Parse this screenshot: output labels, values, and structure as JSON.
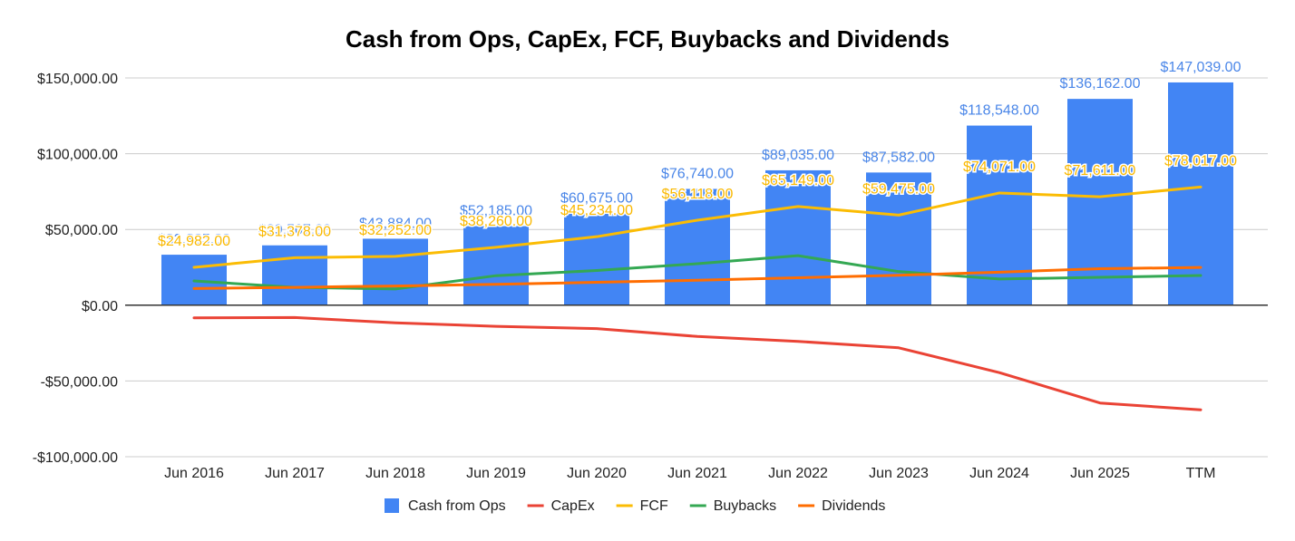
{
  "chart_data": {
    "type": "bar",
    "title": "Cash from Ops, CapEx, FCF, Buybacks and Dividends",
    "xlabel": "",
    "ylabel": "",
    "categories": [
      "Jun 2016",
      "Jun 2017",
      "Jun 2018",
      "Jun 2019",
      "Jun 2020",
      "Jun 2021",
      "Jun 2022",
      "Jun 2023",
      "Jun 2024",
      "Jun 2025",
      "TTM"
    ],
    "ylim": [
      -100000,
      150000
    ],
    "yticks": [
      {
        "value": 150000,
        "label": "$150,000.00"
      },
      {
        "value": 100000,
        "label": "$100,000.00"
      },
      {
        "value": 50000,
        "label": "$50,000.00"
      },
      {
        "value": 0,
        "label": "$0.00"
      },
      {
        "value": -50000,
        "label": "-$50,000.00"
      },
      {
        "value": -100000,
        "label": "-$100,000.00"
      }
    ],
    "grid": true,
    "legend_position": "bottom",
    "series": [
      {
        "name": "Cash from Ops",
        "kind": "bar",
        "color": "#4285f4",
        "label_color": "#4a86e8",
        "values": [
          33325,
          39507,
          43884,
          52185,
          60675,
          76740,
          89035,
          87582,
          118548,
          136162,
          147039
        ],
        "labels": [
          "$33,325.00",
          "$39,507.00",
          "$43,884.00",
          "$52,185.00",
          "$60,675.00",
          "$76,740.00",
          "$89,035.00",
          "$87,582.00",
          "$118,548.00",
          "$136,162.00",
          "$147,039.00"
        ]
      },
      {
        "name": "CapEx",
        "kind": "line",
        "color": "#ea4335",
        "values": [
          -8343,
          -8129,
          -11632,
          -13925,
          -15441,
          -20622,
          -23886,
          -28107,
          -44477,
          -64551,
          -69022
        ]
      },
      {
        "name": "FCF",
        "kind": "line",
        "color": "#fbbc04",
        "label_color": "#f9b800",
        "values": [
          24982,
          31378,
          32252,
          38260,
          45234,
          56118,
          65149,
          59475,
          74071,
          71611,
          78017
        ],
        "labels": [
          "$24,982.00",
          "$31,378.00",
          "$32,252.00",
          "$38,260.00",
          "$45,234.00",
          "$56,118.00",
          "$65,149.00",
          "$59,475.00",
          "$74,071.00",
          "$71,611.00",
          "$78,017.00"
        ]
      },
      {
        "name": "Buybacks",
        "kind": "line",
        "color": "#34a853",
        "values": [
          16000,
          11800,
          10700,
          19500,
          22900,
          27400,
          32700,
          22200,
          17300,
          18400,
          19600
        ]
      },
      {
        "name": "Dividends",
        "kind": "line",
        "color": "#ff6d01",
        "values": [
          11000,
          11800,
          12700,
          13800,
          15100,
          16500,
          18100,
          19800,
          21800,
          24100,
          24900
        ]
      }
    ]
  }
}
